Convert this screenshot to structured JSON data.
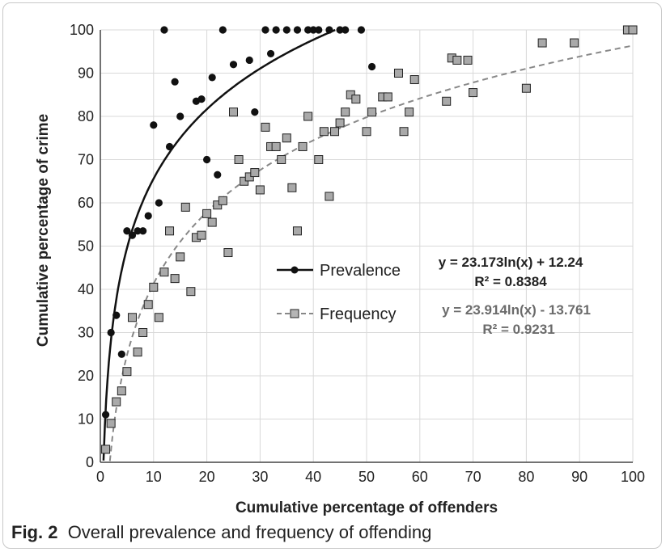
{
  "figure": {
    "caption_label": "Fig. 2",
    "caption_text": "Overall prevalence and frequency of offending"
  },
  "chart_data": {
    "type": "scatter",
    "xlabel": "Cumulative percentage of offenders",
    "ylabel": "Cumulative percentage of crime",
    "xlim": [
      0,
      100
    ],
    "ylim": [
      0,
      100
    ],
    "xticks": [
      0,
      10,
      20,
      30,
      40,
      50,
      60,
      70,
      80,
      90,
      100
    ],
    "yticks": [
      0,
      10,
      20,
      30,
      40,
      50,
      60,
      70,
      80,
      90,
      100
    ],
    "grid": true,
    "legend_position": "center-right",
    "series": [
      {
        "name": "Prevalence",
        "marker": "circle",
        "color": "#111111",
        "trendline": {
          "type": "log",
          "a": 23.173,
          "b": 12.24,
          "style": "solid",
          "color": "#111111"
        },
        "equation": "y = 23.173ln(x) + 12.24",
        "r2_label": "R² = 0.8384",
        "points": [
          [
            1,
            11
          ],
          [
            2,
            30
          ],
          [
            3,
            34
          ],
          [
            4,
            25
          ],
          [
            5,
            53.5
          ],
          [
            6,
            52.5
          ],
          [
            7,
            53.5
          ],
          [
            8,
            53.5
          ],
          [
            9,
            57
          ],
          [
            10,
            78
          ],
          [
            11,
            60
          ],
          [
            12,
            100
          ],
          [
            13,
            73
          ],
          [
            14,
            88
          ],
          [
            15,
            80
          ],
          [
            18,
            83.5
          ],
          [
            19,
            84
          ],
          [
            20,
            70
          ],
          [
            21,
            89
          ],
          [
            22,
            66.5
          ],
          [
            23,
            100
          ],
          [
            25,
            92
          ],
          [
            28,
            93
          ],
          [
            29,
            81
          ],
          [
            31,
            100
          ],
          [
            32,
            94.5
          ],
          [
            33,
            100
          ],
          [
            35,
            100
          ],
          [
            37,
            100
          ],
          [
            39,
            100
          ],
          [
            40,
            100
          ],
          [
            41,
            100
          ],
          [
            43,
            100
          ],
          [
            45,
            100
          ],
          [
            46,
            100
          ],
          [
            49,
            100
          ],
          [
            51,
            91.5
          ]
        ]
      },
      {
        "name": "Frequency",
        "marker": "square",
        "color": "#a9a9a9",
        "trendline": {
          "type": "log",
          "a": 23.914,
          "b": -13.761,
          "style": "dashed",
          "color": "#888888"
        },
        "equation": "y = 23.914ln(x) - 13.761",
        "r2_label": "R² = 0.9231",
        "points": [
          [
            1,
            3
          ],
          [
            2,
            9
          ],
          [
            3,
            14
          ],
          [
            4,
            16.5
          ],
          [
            5,
            21
          ],
          [
            6,
            33.5
          ],
          [
            7,
            25.5
          ],
          [
            8,
            30
          ],
          [
            9,
            36.5
          ],
          [
            10,
            40.5
          ],
          [
            11,
            33.5
          ],
          [
            12,
            44
          ],
          [
            13,
            53.5
          ],
          [
            14,
            42.5
          ],
          [
            15,
            47.5
          ],
          [
            16,
            59
          ],
          [
            17,
            39.5
          ],
          [
            18,
            52
          ],
          [
            19,
            52.5
          ],
          [
            20,
            57.5
          ],
          [
            21,
            55.5
          ],
          [
            22,
            59.5
          ],
          [
            23,
            60.5
          ],
          [
            24,
            48.5
          ],
          [
            25,
            81
          ],
          [
            26,
            70
          ],
          [
            27,
            65
          ],
          [
            28,
            66
          ],
          [
            29,
            67
          ],
          [
            30,
            63
          ],
          [
            31,
            77.5
          ],
          [
            32,
            73
          ],
          [
            33,
            73
          ],
          [
            34,
            70
          ],
          [
            35,
            75
          ],
          [
            36,
            63.5
          ],
          [
            37,
            53.5
          ],
          [
            38,
            73
          ],
          [
            39,
            80
          ],
          [
            41,
            70
          ],
          [
            42,
            76.5
          ],
          [
            43,
            61.5
          ],
          [
            44,
            76.5
          ],
          [
            45,
            78.5
          ],
          [
            46,
            81
          ],
          [
            47,
            85
          ],
          [
            48,
            84
          ],
          [
            50,
            76.5
          ],
          [
            51,
            81
          ],
          [
            53,
            84.5
          ],
          [
            54,
            84.5
          ],
          [
            56,
            90
          ],
          [
            57,
            76.5
          ],
          [
            58,
            81
          ],
          [
            59,
            88.5
          ],
          [
            65,
            83.5
          ],
          [
            66,
            93.5
          ],
          [
            67,
            93
          ],
          [
            69,
            93
          ],
          [
            70,
            85.5
          ],
          [
            80,
            86.5
          ],
          [
            83,
            97
          ],
          [
            89,
            97
          ],
          [
            99,
            100
          ],
          [
            100,
            100
          ]
        ]
      }
    ]
  }
}
